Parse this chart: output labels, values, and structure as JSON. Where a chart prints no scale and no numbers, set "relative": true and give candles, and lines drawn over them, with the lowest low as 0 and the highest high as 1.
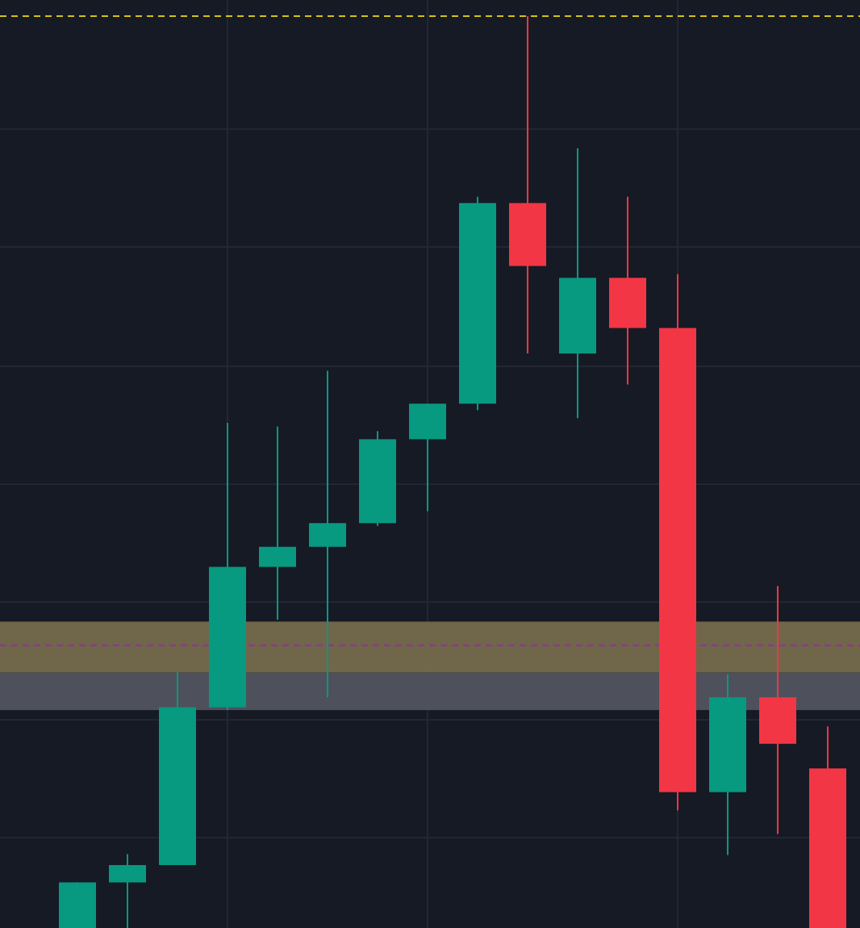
{
  "chart_data": {
    "type": "candlestick",
    "relative": true,
    "categories": [
      null,
      null,
      null,
      null,
      null,
      null,
      null,
      null,
      null,
      null,
      null,
      null,
      null,
      null,
      null,
      null
    ],
    "ohlc": [
      [
        0,
        0.05,
        0,
        0.05
      ],
      [
        0.05,
        0.081,
        0,
        0.069
      ],
      [
        0.069,
        0.281,
        0.069,
        0.242
      ],
      [
        0.242,
        0.554,
        0.239,
        0.396
      ],
      [
        0.396,
        0.55,
        0.338,
        0.418
      ],
      [
        0.418,
        0.611,
        0.253,
        0.444
      ],
      [
        0.444,
        0.545,
        0.441,
        0.536
      ],
      [
        0.536,
        0.575,
        0.457,
        0.575
      ],
      [
        0.575,
        0.802,
        0.568,
        0.795
      ],
      [
        0.795,
        1,
        0.63,
        0.726
      ],
      [
        0.63,
        0.855,
        0.559,
        0.713
      ],
      [
        0.713,
        0.802,
        0.596,
        0.658
      ],
      [
        0.658,
        0.717,
        0.129,
        0.149
      ],
      [
        0.149,
        0.278,
        0.08,
        0.253
      ],
      [
        0.253,
        0.375,
        0.103,
        0.202
      ],
      [
        0.175,
        0.221,
        0,
        0
      ]
    ],
    "colors": [
      "#089981",
      "#089981",
      "#089981",
      "#089981",
      "#089981",
      "#089981",
      "#089981",
      "#089981",
      "#089981",
      "#f23645",
      "#089981",
      "#f23645",
      "#f23645",
      "#089981",
      "#f23645",
      "#f23645"
    ],
    "bands": [
      {
        "axis": "y",
        "from": 0.28,
        "to": 0.336,
        "color": "#7a6f4f"
      },
      {
        "axis": "y",
        "from": 0.239,
        "to": 0.28,
        "color": "#545862"
      }
    ],
    "ref_lines": [
      {
        "axis": "y",
        "value": 0.31,
        "color": "#9c27b0",
        "line_style": "dashed"
      },
      {
        "axis": "y",
        "value": 1,
        "color": "#d4c21a",
        "line_style": "dashed"
      }
    ],
    "grid": true
  }
}
